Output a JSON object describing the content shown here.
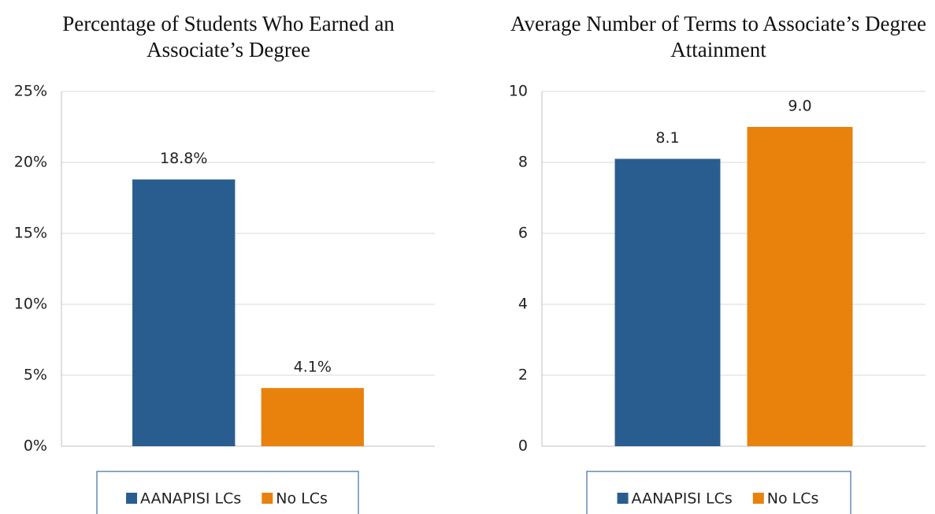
{
  "chart_data": [
    {
      "type": "bar",
      "title": "Percentage of Students Who Earned an Associate’s Degree",
      "series": [
        {
          "name": "AANAPISI LCs",
          "color": "#2a5d8f",
          "values": [
            18.8
          ],
          "value_labels": [
            "18.8%"
          ]
        },
        {
          "name": "No LCs",
          "color": "#e8820c",
          "values": [
            4.1
          ],
          "value_labels": [
            "4.1%"
          ]
        }
      ],
      "ylim": [
        0,
        25
      ],
      "yticks": [
        {
          "value": 0,
          "label": "0%"
        },
        {
          "value": 5,
          "label": "5%"
        },
        {
          "value": 10,
          "label": "10%"
        },
        {
          "value": 15,
          "label": "15%"
        },
        {
          "value": 20,
          "label": "20%"
        },
        {
          "value": 25,
          "label": "25%"
        }
      ],
      "grid": true,
      "legend": "bottom"
    },
    {
      "type": "bar",
      "title": "Average Number of Terms to Associate’s Degree Attainment",
      "series": [
        {
          "name": "AANAPISI LCs",
          "color": "#2a5d8f",
          "values": [
            8.1
          ],
          "value_labels": [
            "8.1"
          ]
        },
        {
          "name": "No LCs",
          "color": "#e8820c",
          "values": [
            9.0
          ],
          "value_labels": [
            "9.0"
          ]
        }
      ],
      "ylim": [
        0,
        10
      ],
      "yticks": [
        0,
        2,
        4,
        6,
        8,
        10
      ],
      "grid": true,
      "legend": "bottom"
    }
  ]
}
